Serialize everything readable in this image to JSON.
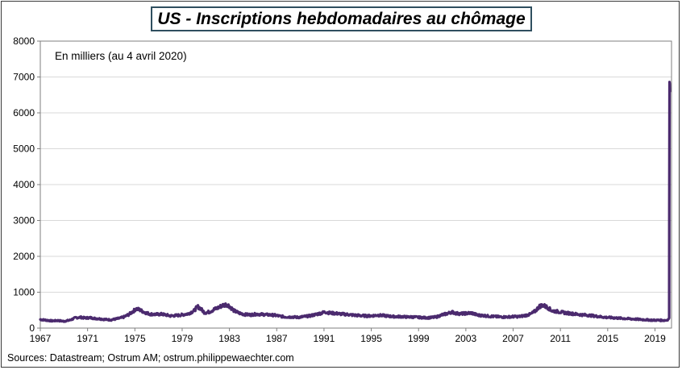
{
  "chart_data": {
    "type": "line",
    "title": "US - Inscriptions hebdomadaires au chômage",
    "subtitle": "En milliers (au 4 avril 2020)",
    "source": "Sources: Datastream;  Ostrum AM; ostrum.philippewaechter.com",
    "xlim": [
      1967,
      2020.4
    ],
    "ylim": [
      0,
      8000
    ],
    "yticks": [
      0,
      1000,
      2000,
      3000,
      4000,
      5000,
      6000,
      7000,
      8000
    ],
    "xticks": [
      1967,
      1971,
      1975,
      1979,
      1983,
      1987,
      1991,
      1995,
      1999,
      2003,
      2007,
      2011,
      2015,
      2019
    ],
    "grid": true,
    "line_color": "#4b2a6e",
    "series": [
      {
        "x": [
          1967.0,
          1967.5,
          1968.0,
          1968.5,
          1969.0,
          1969.5,
          1970.0,
          1970.4,
          1970.8,
          1971.2,
          1971.6,
          1972.0,
          1972.5,
          1973.0,
          1973.5,
          1974.0,
          1974.5,
          1974.9,
          1975.1,
          1975.4,
          1975.8,
          1976.3,
          1976.8,
          1977.2,
          1977.6,
          1978.0,
          1978.5,
          1979.0,
          1979.5,
          1980.0,
          1980.3,
          1980.5,
          1980.9,
          1981.3,
          1981.7,
          1982.0,
          1982.4,
          1982.8,
          1983.0,
          1983.4,
          1983.8,
          1984.3,
          1984.8,
          1985.3,
          1985.8,
          1986.3,
          1986.8,
          1987.3,
          1987.8,
          1988.3,
          1988.8,
          1989.3,
          1989.8,
          1990.3,
          1990.8,
          1991.1,
          1991.5,
          1992.0,
          1992.5,
          1993.0,
          1993.5,
          1994.0,
          1994.5,
          1995.0,
          1995.5,
          1996.0,
          1996.5,
          1997.0,
          1997.5,
          1998.0,
          1998.5,
          1999.0,
          1999.5,
          2000.0,
          2000.5,
          2001.0,
          2001.5,
          2001.8,
          2002.2,
          2002.6,
          2003.0,
          2003.5,
          2004.0,
          2004.5,
          2005.0,
          2005.5,
          2006.0,
          2006.5,
          2007.0,
          2007.5,
          2008.0,
          2008.5,
          2008.9,
          2009.2,
          2009.5,
          2009.9,
          2010.3,
          2010.8,
          2011.3,
          2011.8,
          2012.3,
          2012.8,
          2013.3,
          2013.8,
          2014.3,
          2014.8,
          2015.3,
          2015.8,
          2016.3,
          2016.8,
          2017.3,
          2017.8,
          2018.3,
          2018.8,
          2019.3,
          2019.8,
          2020.0,
          2020.15,
          2020.2,
          2020.21,
          2020.23,
          2020.25,
          2020.26
        ],
        "y": [
          240,
          220,
          200,
          210,
          190,
          220,
          290,
          300,
          280,
          290,
          270,
          260,
          240,
          230,
          260,
          300,
          380,
          480,
          540,
          510,
          440,
          390,
          380,
          390,
          370,
          340,
          350,
          370,
          400,
          480,
          600,
          560,
          430,
          450,
          520,
          560,
          630,
          660,
          610,
          480,
          420,
          380,
          370,
          390,
          380,
          370,
          360,
          330,
          310,
          310,
          300,
          320,
          340,
          380,
          420,
          450,
          420,
          410,
          390,
          380,
          360,
          350,
          340,
          340,
          360,
          350,
          330,
          320,
          320,
          310,
          310,
          300,
          290,
          290,
          310,
          370,
          410,
          450,
          410,
          400,
          410,
          420,
          360,
          350,
          330,
          320,
          310,
          310,
          320,
          320,
          350,
          390,
          480,
          600,
          640,
          580,
          480,
          460,
          430,
          410,
          390,
          370,
          360,
          340,
          320,
          300,
          290,
          280,
          270,
          260,
          250,
          240,
          230,
          220,
          220,
          215,
          220,
          250,
          280,
          3300,
          6860,
          6810,
          6600
        ]
      }
    ]
  }
}
